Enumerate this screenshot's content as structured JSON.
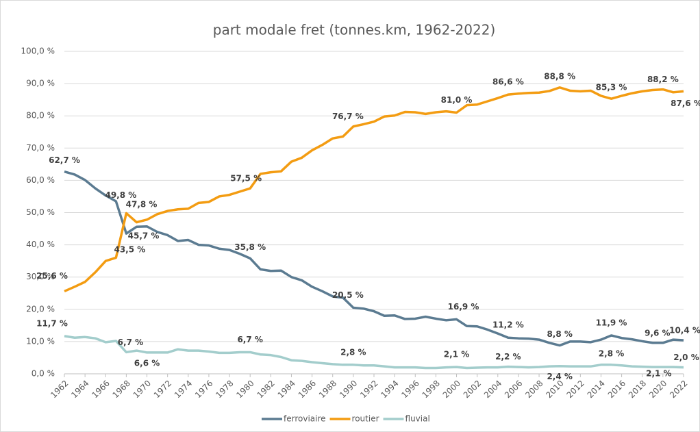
{
  "chart_data": {
    "type": "line",
    "title": "part modale fret (tonnes.km, 1962-2022)",
    "x": [
      1962,
      1963,
      1964,
      1965,
      1966,
      1967,
      1968,
      1969,
      1970,
      1971,
      1972,
      1973,
      1974,
      1975,
      1976,
      1977,
      1978,
      1979,
      1980,
      1981,
      1982,
      1983,
      1984,
      1985,
      1986,
      1987,
      1988,
      1989,
      1990,
      1991,
      1992,
      1993,
      1994,
      1995,
      1996,
      1997,
      1998,
      1999,
      2000,
      2001,
      2002,
      2003,
      2004,
      2005,
      2006,
      2007,
      2008,
      2009,
      2010,
      2011,
      2012,
      2013,
      2014,
      2015,
      2016,
      2017,
      2018,
      2019,
      2020,
      2021,
      2022
    ],
    "xlim": [
      1962,
      2022
    ],
    "xticks": [
      1962,
      1964,
      1966,
      1968,
      1970,
      1972,
      1974,
      1976,
      1978,
      1980,
      1982,
      1984,
      1986,
      1988,
      1990,
      1992,
      1994,
      1996,
      1998,
      2000,
      2002,
      2004,
      2006,
      2008,
      2010,
      2012,
      2014,
      2016,
      2018,
      2020,
      2022
    ],
    "ylim": [
      0,
      100
    ],
    "yticks": [
      {
        "value": 0,
        "label": "0,0 %"
      },
      {
        "value": 10,
        "label": "10,0 %"
      },
      {
        "value": 20,
        "label": "20,0 %"
      },
      {
        "value": 30,
        "label": "30,0 %"
      },
      {
        "value": 40,
        "label": "40,0 %"
      },
      {
        "value": 50,
        "label": "50,0 %"
      },
      {
        "value": 60,
        "label": "60,0 %"
      },
      {
        "value": 70,
        "label": "70,0 %"
      },
      {
        "value": 80,
        "label": "80,0 %"
      },
      {
        "value": 90,
        "label": "90,0 %"
      },
      {
        "value": 100,
        "label": "100,0 %"
      }
    ],
    "grid": true,
    "legend": "bottom",
    "series": [
      {
        "name": "ferroviaire",
        "color": "#5b7b91",
        "values": [
          62.7,
          61.8,
          60.1,
          57.5,
          55.3,
          53.5,
          43.5,
          45.6,
          45.7,
          44,
          43,
          41.2,
          41.5,
          40,
          39.8,
          38.8,
          38.4,
          37.2,
          35.8,
          32.4,
          31.9,
          32,
          30,
          29,
          27,
          25.6,
          24,
          23.6,
          20.5,
          20.2,
          19.4,
          18,
          18.1,
          17,
          17.1,
          17.7,
          17.1,
          16.6,
          16.9,
          14.8,
          14.7,
          13.7,
          12.5,
          11.2,
          11,
          10.9,
          10.6,
          9.6,
          8.8,
          10,
          10,
          9.8,
          10.6,
          11.9,
          11.1,
          10.7,
          10.1,
          9.6,
          9.6,
          10.6,
          10.4
        ],
        "value_labels": [
          "62,7 %",
          null,
          null,
          null,
          null,
          null,
          "43,5 %",
          null,
          "45,7 %",
          null,
          null,
          null,
          null,
          null,
          null,
          null,
          null,
          null,
          "35,8 %",
          null,
          null,
          null,
          null,
          null,
          null,
          null,
          null,
          null,
          "20,5 %",
          null,
          null,
          null,
          null,
          null,
          null,
          null,
          null,
          null,
          "16,9 %",
          null,
          null,
          null,
          null,
          "11,2 %",
          null,
          null,
          null,
          null,
          "8,8 %",
          null,
          null,
          null,
          null,
          "11,9 %",
          null,
          null,
          null,
          null,
          "9,6 %",
          null,
          "10,4 %"
        ]
      },
      {
        "name": "routier",
        "color": "#f39c12",
        "values": [
          25.6,
          27,
          28.5,
          31.5,
          35,
          36,
          49.8,
          47,
          47.8,
          49.5,
          50.5,
          51,
          51.2,
          53,
          53.3,
          55,
          55.5,
          56.5,
          57.5,
          62,
          62.5,
          62.8,
          65.8,
          67,
          69.3,
          71,
          73,
          73.6,
          76.7,
          77.4,
          78.2,
          79.8,
          80.1,
          81.2,
          81.1,
          80.6,
          81.1,
          81.4,
          81.0,
          83.3,
          83.5,
          84.5,
          85.5,
          86.6,
          86.9,
          87.1,
          87.2,
          87.7,
          88.8,
          87.8,
          87.6,
          87.8,
          86.2,
          85.3,
          86.2,
          87,
          87.6,
          88,
          88.2,
          87.3,
          87.6
        ],
        "value_labels": [
          "25,6 %",
          null,
          null,
          null,
          null,
          null,
          "49,8 %",
          null,
          "47,8 %",
          null,
          null,
          null,
          null,
          null,
          null,
          null,
          null,
          null,
          "57,5 %",
          null,
          null,
          null,
          null,
          null,
          null,
          null,
          null,
          null,
          "76,7 %",
          null,
          null,
          null,
          null,
          null,
          null,
          null,
          null,
          null,
          "81,0 %",
          null,
          null,
          null,
          null,
          "86,6 %",
          null,
          null,
          null,
          null,
          "88,8 %",
          null,
          null,
          null,
          null,
          "85,3 %",
          null,
          null,
          null,
          null,
          "88,2 %",
          null,
          "87,6 %"
        ]
      },
      {
        "name": "fluvial",
        "color": "#a3cdcc",
        "values": [
          11.7,
          11.2,
          11.4,
          11,
          9.8,
          10.2,
          6.7,
          7.2,
          6.6,
          6.6,
          6.6,
          7.6,
          7.2,
          7.2,
          6.9,
          6.5,
          6.5,
          6.7,
          6.7,
          6,
          5.8,
          5.2,
          4.2,
          4,
          3.6,
          3.3,
          3,
          2.8,
          2.8,
          2.6,
          2.6,
          2.3,
          2,
          2,
          2,
          1.8,
          1.8,
          2,
          2.1,
          1.8,
          1.9,
          2,
          2,
          2.2,
          2.1,
          2,
          2.1,
          2.3,
          2.4,
          2.3,
          2.3,
          2.3,
          2.8,
          2.8,
          2.6,
          2.3,
          2.2,
          2.1,
          2.1,
          2.1,
          2.0
        ],
        "value_labels": [
          "11,7 %",
          null,
          null,
          null,
          null,
          null,
          "6,7 %",
          null,
          "6,6 %",
          null,
          null,
          null,
          null,
          null,
          null,
          null,
          null,
          null,
          "6,7 %",
          null,
          null,
          null,
          null,
          null,
          null,
          null,
          null,
          null,
          "2,8 %",
          null,
          null,
          null,
          null,
          null,
          null,
          null,
          null,
          null,
          "2,1 %",
          null,
          null,
          null,
          null,
          "2,2 %",
          null,
          null,
          null,
          null,
          "2,4 %",
          null,
          null,
          null,
          null,
          "2,8 %",
          null,
          null,
          null,
          null,
          "2,1 %",
          null,
          "2,0 %"
        ]
      }
    ]
  }
}
